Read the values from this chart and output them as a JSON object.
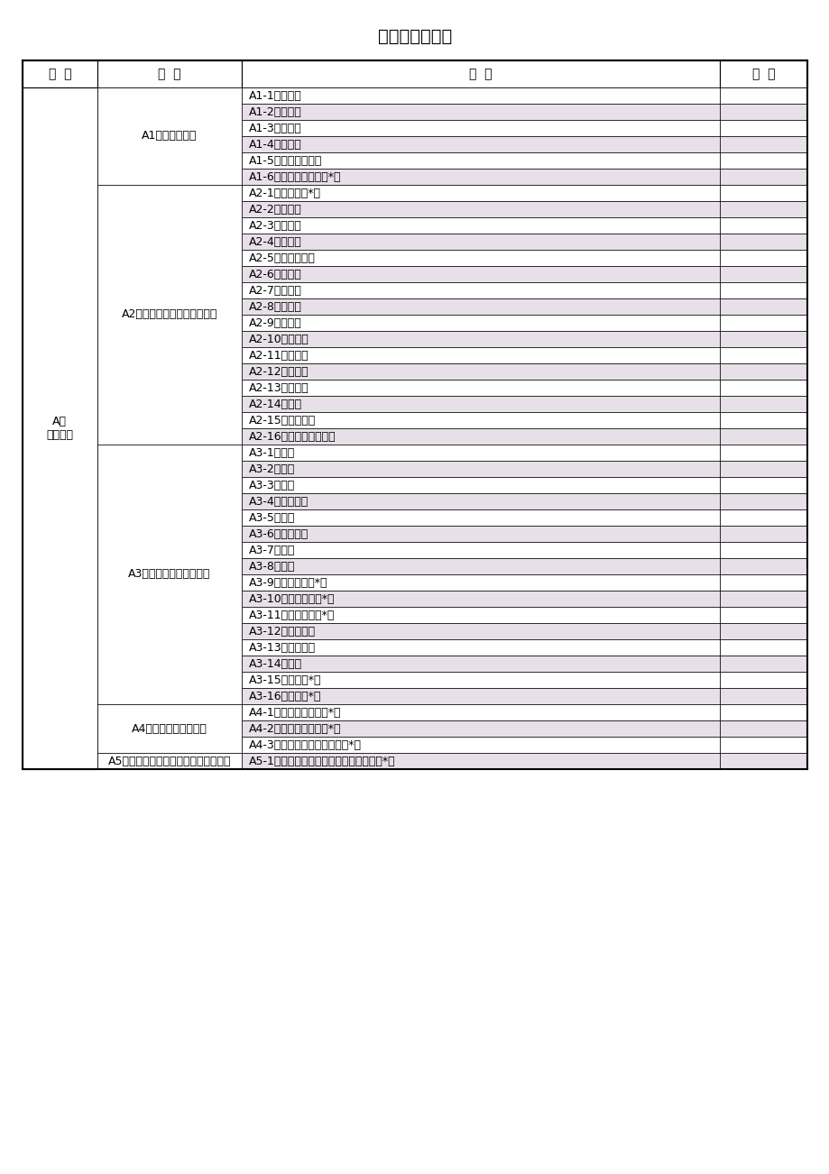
{
  "title": "评标专业分类表",
  "header": [
    "一  级",
    "二  级",
    "三  级",
    "备  注"
  ],
  "col1_label": "A、\n政府采购",
  "rows": [
    {
      "level2": "A1、电器设备类",
      "level2_span": 6,
      "level3": "A1-1、电视机",
      "shaded": false
    },
    {
      "level2": "",
      "level3": "A1-2、电冰箱",
      "shaded": true
    },
    {
      "level2": "",
      "level3": "A1-3、洗衣机",
      "shaded": false
    },
    {
      "level2": "",
      "level3": "A1-4、吸尘器",
      "shaded": true
    },
    {
      "level2": "",
      "level3": "A1-5、照相摄像器材",
      "shaded": false
    },
    {
      "level2": "",
      "level3": "A1-6、空气调节设备（*）",
      "shaded": true
    },
    {
      "level2": "A2、办公自动化设备及耗材类",
      "level2_span": 16,
      "level3": "A2-1、计算机（*）",
      "shaded": false
    },
    {
      "level2": "",
      "level3": "A2-2、服务器",
      "shaded": true
    },
    {
      "level2": "",
      "level3": "A2-3、路由器",
      "shaded": false
    },
    {
      "level2": "",
      "level3": "A2-4、互换机",
      "shaded": true
    },
    {
      "level2": "",
      "level3": "A2-5、调制解调器",
      "shaded": false
    },
    {
      "level2": "",
      "level3": "A2-6、打印机",
      "shaded": true
    },
    {
      "level2": "",
      "level3": "A2-7、电话机",
      "shaded": false
    },
    {
      "level2": "",
      "level3": "A2-8、传真机",
      "shaded": true
    },
    {
      "level2": "",
      "level3": "A2-9、复印机",
      "shaded": false
    },
    {
      "level2": "",
      "level3": "A2-10、速印机",
      "shaded": true
    },
    {
      "level2": "",
      "level3": "A2-11、碎纸机",
      "shaded": false
    },
    {
      "level2": "",
      "level3": "A2-12、投影仪",
      "shaded": true
    },
    {
      "level2": "",
      "level3": "A2-13、扫描仪",
      "shaded": false
    },
    {
      "level2": "",
      "level3": "A2-14、软盘",
      "shaded": true
    },
    {
      "level2": "",
      "level3": "A2-15、可写光盘",
      "shaded": false
    },
    {
      "level2": "",
      "level3": "A2-16、打印及复印耗材",
      "shaded": true
    },
    {
      "level2": "A3、建材、物资及家具类",
      "level2_span": 16,
      "level3": "A3-1、水泥",
      "shaded": false
    },
    {
      "level2": "",
      "level3": "A3-2、木材",
      "shaded": true
    },
    {
      "level2": "",
      "level3": "A3-3、板材",
      "shaded": false
    },
    {
      "level2": "",
      "level3": "A3-4、金属材料",
      "shaded": true
    },
    {
      "level2": "",
      "level3": "A3-5、瓷砖",
      "shaded": false
    },
    {
      "level2": "",
      "level3": "A3-6、清洁用品",
      "shaded": true
    },
    {
      "level2": "",
      "level3": "A3-7、玻璃",
      "shaded": false
    },
    {
      "level2": "",
      "level3": "A3-8、油漆",
      "shaded": true
    },
    {
      "level2": "",
      "level3": "A3-9、救灾物资（*）",
      "shaded": false
    },
    {
      "level2": "",
      "level3": "A3-10、防汛物资（*）",
      "shaded": true
    },
    {
      "level2": "",
      "level3": "A3-11、抗旱物资（*）",
      "shaded": false
    },
    {
      "level2": "",
      "level3": "A3-12、农用物资",
      "shaded": true
    },
    {
      "level2": "",
      "level3": "A3-13、储藏物资",
      "shaded": false
    },
    {
      "level2": "",
      "level3": "A3-14、燃料",
      "shaded": true
    },
    {
      "level2": "",
      "level3": "A3-15、服装（*）",
      "shaded": false
    },
    {
      "level2": "",
      "level3": "A3-16、家具（*）",
      "shaded": true
    },
    {
      "level2": "A4、通信及影视设备类",
      "level2_span": 3,
      "level3": "A4-1、移动通信设备（*）",
      "shaded": false
    },
    {
      "level2": "",
      "level3": "A4-2、电话通信设备（*）",
      "shaded": true
    },
    {
      "level2": "",
      "level3": "A4-3、广播电视、影像设备（*）",
      "shaded": false
    },
    {
      "level2": "A5、信息技术、系统集成及网络工程类",
      "level2_span": 1,
      "level3": "A5-1、信息技术、管理软件的开发设计（*）",
      "shaded": true
    }
  ],
  "bg_color": "#ffffff",
  "shaded_color": "#e8e0e8",
  "header_bg": "#ffffff",
  "border_color": "#000000",
  "text_color": "#000000",
  "font_size": 9,
  "header_font_size": 10
}
